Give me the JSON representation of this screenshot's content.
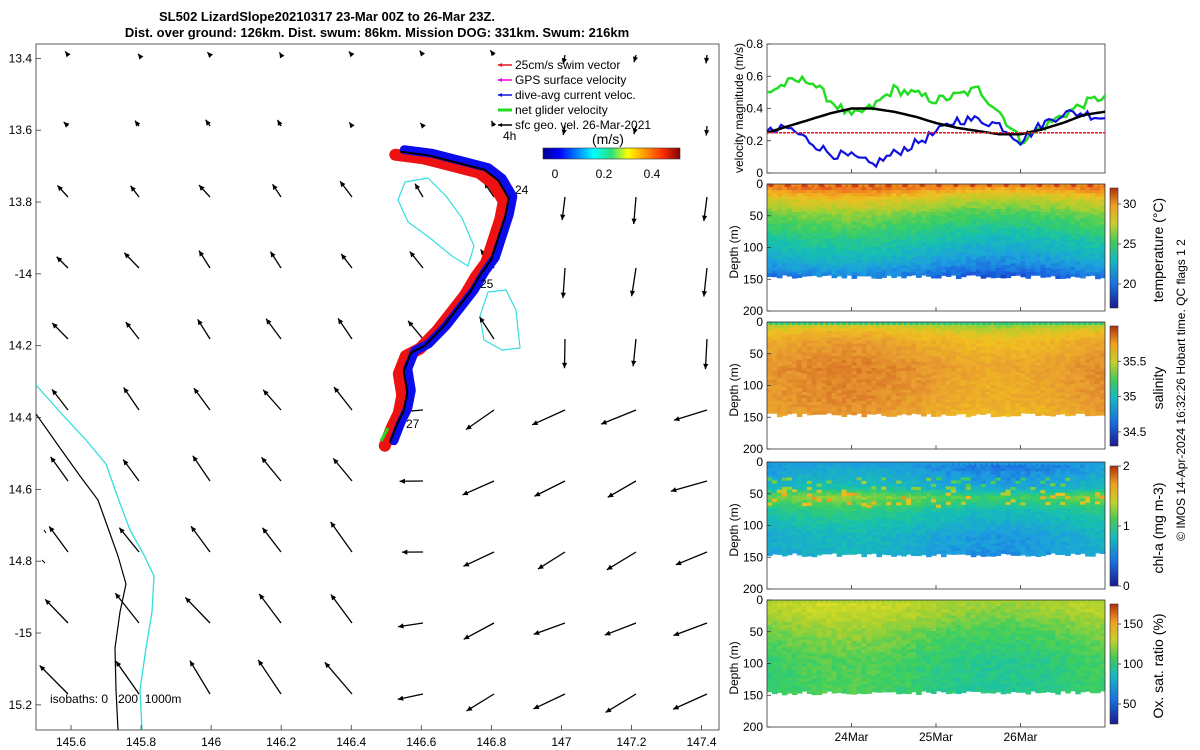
{
  "title": {
    "line1": "SL502 LizardSlope20210317 23-Mar 00Z to 26-Mar 23Z.",
    "line2": "Dist. over ground: 126km. Dist. swum: 86km. Mission DOG: 331km. Swum: 216km"
  },
  "credit": "© IMOS 14-Apr-2024 16:32:26 Hobart time. QC flags 1 2",
  "colors": {
    "swim": "#e8141e",
    "gps": "#e600e6",
    "diveavg": "#1010e0",
    "net": "#22dd22",
    "sfcgeo": "#000000",
    "isobath0": "#000000",
    "isobath200": "#33dddd",
    "track_red": "#ee1111",
    "track_blue": "#0b0bee"
  },
  "map": {
    "type": "map-vector-field",
    "xlim": [
      145.5,
      147.45
    ],
    "ylim": [
      -15.27,
      -13.36
    ],
    "xticks": [
      "145.6",
      "145.8",
      "146",
      "146.2",
      "146.4",
      "146.6",
      "146.8",
      "147",
      "147.2",
      "147.4"
    ],
    "yticks": [
      "-13.4",
      "-13.6",
      "-13.8",
      "-14",
      "-14.2",
      "-14.4",
      "-14.6",
      "-14.8",
      "-15",
      "-15.2"
    ],
    "ytick_labels": [
      "13.4",
      "13.6",
      "13.8",
      "-14",
      "14.2",
      "14.4",
      "14.6",
      "14.8",
      "-15",
      "15.2"
    ],
    "legend": [
      {
        "label": "25cm/s swim vector",
        "color_key": "swim"
      },
      {
        "label": "GPS surface velocity",
        "color_key": "gps"
      },
      {
        "label": "dive-avg current veloc.",
        "color_key": "diveavg"
      },
      {
        "label": "net glider velocity",
        "color_key": "net"
      },
      {
        "label": "sfc geo. vel. 26-Mar-2021",
        "color_key": "sfcgeo"
      }
    ],
    "colorbar": {
      "label": "(m/s)",
      "ticks": [
        "0",
        "0.2",
        "0.4"
      ]
    },
    "day_labels": [
      "4h",
      "24",
      "25",
      "27"
    ],
    "isobath_label": "isobaths: 0   200  1000m",
    "track": [
      [
        146.54,
        -13.66
      ],
      [
        146.62,
        -13.67
      ],
      [
        146.7,
        -13.69
      ],
      [
        146.78,
        -13.71
      ],
      [
        146.82,
        -13.74
      ],
      [
        146.85,
        -13.79
      ],
      [
        146.84,
        -13.84
      ],
      [
        146.82,
        -13.9
      ],
      [
        146.8,
        -13.96
      ],
      [
        146.77,
        -14.0
      ],
      [
        146.74,
        -14.05
      ],
      [
        146.7,
        -14.1
      ],
      [
        146.66,
        -14.15
      ],
      [
        146.61,
        -14.2
      ],
      [
        146.57,
        -14.22
      ],
      [
        146.55,
        -14.27
      ],
      [
        146.56,
        -14.33
      ],
      [
        146.55,
        -14.38
      ],
      [
        146.53,
        -14.42
      ],
      [
        146.51,
        -14.47
      ]
    ]
  },
  "velocity_panel": {
    "type": "line",
    "ylabel": "velocity magnitude (m/s)",
    "ylim": [
      0,
      0.8
    ],
    "yticks": [
      "0",
      "0.2",
      "0.4",
      "0.6",
      "0.8"
    ],
    "x_days": [
      0.0,
      0.25,
      0.5,
      0.75,
      1.0,
      1.25,
      1.5,
      1.75,
      2.0,
      2.25,
      2.5,
      2.75,
      3.0,
      3.25,
      3.5,
      3.75,
      4.0
    ],
    "series": [
      {
        "color_key": "net",
        "values": [
          0.5,
          0.56,
          0.58,
          0.45,
          0.35,
          0.41,
          0.52,
          0.49,
          0.45,
          0.48,
          0.52,
          0.38,
          0.2,
          0.28,
          0.36,
          0.43,
          0.48
        ]
      },
      {
        "color_key": "diveavg",
        "values": [
          0.25,
          0.28,
          0.2,
          0.12,
          0.1,
          0.05,
          0.12,
          0.18,
          0.25,
          0.33,
          0.33,
          0.3,
          0.2,
          0.3,
          0.37,
          0.37,
          0.34
        ]
      },
      {
        "color_key": "sfcgeo",
        "values": [
          0.25,
          0.29,
          0.33,
          0.37,
          0.4,
          0.4,
          0.38,
          0.35,
          0.31,
          0.28,
          0.26,
          0.24,
          0.24,
          0.27,
          0.31,
          0.36,
          0.38
        ]
      },
      {
        "color_key": "swim",
        "values": [
          0.25,
          0.25,
          0.25,
          0.25,
          0.25,
          0.25,
          0.25,
          0.25,
          0.25,
          0.25,
          0.25,
          0.25,
          0.25,
          0.25,
          0.25,
          0.25,
          0.25
        ]
      }
    ]
  },
  "section_panels": [
    {
      "type": "heatmap",
      "cbar_label": "temperature (°C)",
      "clim": [
        17,
        32
      ],
      "cbar_ticks": [
        "20",
        "25",
        "30"
      ],
      "palette": "temperature",
      "ylabel": "Depth (m)",
      "yticks": [
        "0",
        "50",
        "100",
        "150",
        "200"
      ]
    },
    {
      "type": "heatmap",
      "cbar_label": "salinity",
      "clim": [
        34.3,
        36.0
      ],
      "cbar_ticks": [
        "34.5",
        "35",
        "35.5"
      ],
      "palette": "salinity",
      "ylabel": "Depth (m)",
      "yticks": [
        "0",
        "50",
        "100",
        "150",
        "200"
      ]
    },
    {
      "type": "heatmap",
      "cbar_label": "chl-a (mg m-3)",
      "clim": [
        0,
        2
      ],
      "cbar_ticks": [
        "0",
        "1",
        "2"
      ],
      "palette": "chla",
      "ylabel": "Depth (m)",
      "yticks": [
        "0",
        "50",
        "100",
        "150",
        "200"
      ]
    },
    {
      "type": "heatmap",
      "cbar_label": "Ox. sat. ratio (%)",
      "clim": [
        25,
        175
      ],
      "cbar_ticks": [
        "50",
        "100",
        "150"
      ],
      "palette": "oxygen",
      "ylabel": "Depth (m)",
      "yticks": [
        "0",
        "50",
        "100",
        "150",
        "200"
      ]
    }
  ],
  "time_axis": {
    "ticks": [
      "24Mar",
      "25Mar",
      "26Mar"
    ]
  }
}
